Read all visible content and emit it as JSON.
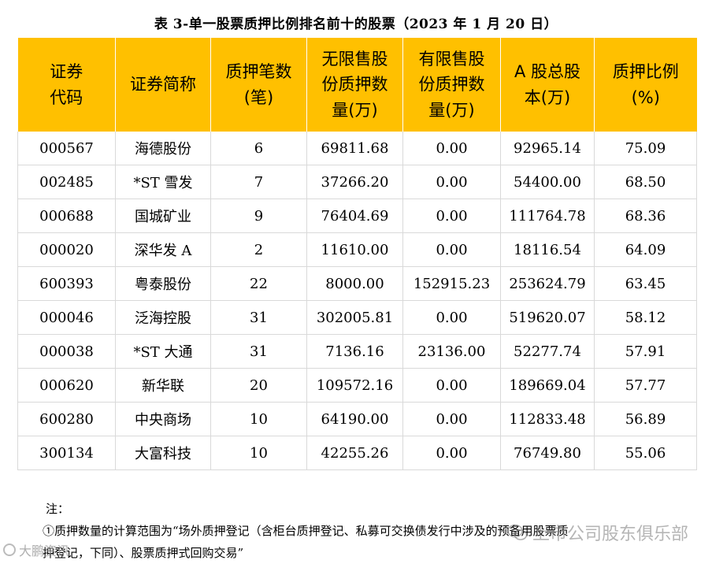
{
  "title": "表 3-单一股票质押比例排名前十的股票（2023 年 1 月 20 日）",
  "headers": [
    [
      "证券",
      "代码"
    ],
    [
      "证券简称"
    ],
    [
      "质押笔数",
      "(笔)"
    ],
    [
      "无限售股",
      "份质押数",
      "量(万)"
    ],
    [
      "有限售股",
      "份质押数",
      "量(万)"
    ],
    [
      "A 股总股",
      "本(万)"
    ],
    [
      "质押比例",
      "(%)"
    ]
  ],
  "rows": [
    [
      "000567",
      "海德股份",
      "6",
      "69811.68",
      "0.00",
      "92965.14",
      "75.09"
    ],
    [
      "002485",
      "*ST 雪发",
      "7",
      "37266.20",
      "0.00",
      "54400.00",
      "68.50"
    ],
    [
      "000688",
      "国城矿业",
      "9",
      "76404.69",
      "0.00",
      "111764.78",
      "68.36"
    ],
    [
      "000020",
      "深华发 A",
      "2",
      "11610.00",
      "0.00",
      "18116.54",
      "64.09"
    ],
    [
      "600393",
      "粤泰股份",
      "22",
      "8000.00",
      "152915.23",
      "253624.79",
      "63.45"
    ],
    [
      "000046",
      "泛海控股",
      "31",
      "302005.81",
      "0.00",
      "519620.07",
      "58.12"
    ],
    [
      "000038",
      "*ST 大通",
      "31",
      "7136.16",
      "23136.00",
      "52277.74",
      "57.91"
    ],
    [
      "000620",
      "新华联",
      "20",
      "109572.16",
      "0.00",
      "189669.04",
      "57.77"
    ],
    [
      "600280",
      "中央商场",
      "10",
      "64190.00",
      "0.00",
      "112833.48",
      "56.89"
    ],
    [
      "300134",
      "大富科技",
      "10",
      "42255.26",
      "0.00",
      "76749.80",
      "55.06"
    ]
  ],
  "notes": {
    "heading": "注：",
    "line1": "①质押数量的计算范围为“场外质押登记（含柜台质押登记、私募可交换债发行中涉及的预备用股票质",
    "line2": "押登记，下同）、股票质押式回购交易”"
  },
  "watermarks": {
    "left": "大鹏资讯",
    "right": "上市公司股东俱乐部"
  },
  "colors": {
    "header_bg": "#ffc000",
    "border": "#d9d9d9"
  }
}
